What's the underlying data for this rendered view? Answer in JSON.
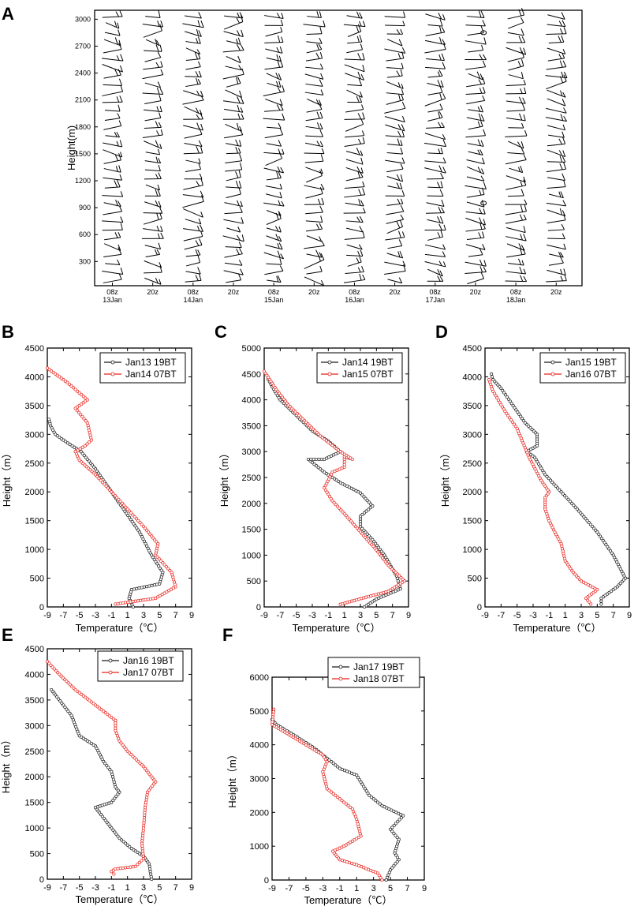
{
  "chart_data": [
    {
      "panel_label": "A",
      "type": "wind-barbs",
      "ylabel": "Height(m)",
      "y_ticks": [
        300,
        600,
        900,
        1200,
        1500,
        1800,
        2100,
        2400,
        2700,
        3000
      ],
      "ylim": [
        30,
        3100
      ],
      "x_ticks": [
        {
          "time": "08z",
          "date": "13Jan"
        },
        {
          "time": "20z",
          "date": ""
        },
        {
          "time": "08z",
          "date": "14Jan"
        },
        {
          "time": "20z",
          "date": ""
        },
        {
          "time": "08z",
          "date": "15Jan"
        },
        {
          "time": "20z",
          "date": ""
        },
        {
          "time": "08z",
          "date": "16Jan"
        },
        {
          "time": "20z",
          "date": ""
        },
        {
          "time": "08z",
          "date": "17Jan"
        },
        {
          "time": "20z",
          "date": ""
        },
        {
          "time": "08z",
          "date": "18Jan"
        },
        {
          "time": "20z",
          "date": ""
        }
      ],
      "profile_times": [
        0,
        0.5,
        1,
        1.5,
        2,
        2.5,
        3,
        3.5,
        4,
        4.5,
        5,
        5.5
      ],
      "barb_heights": [
        150,
        450,
        750,
        1050,
        1350,
        1650,
        1950,
        2250,
        2550,
        2850
      ]
    },
    {
      "panel_label": "B",
      "type": "line",
      "xlabel": "Temperature（℃）",
      "ylabel": "Height（m）",
      "xlim": [
        -9,
        9
      ],
      "ylim": [
        0,
        4500
      ],
      "x_ticks": [
        -9,
        -7,
        -5,
        -3,
        -1,
        1,
        3,
        5,
        7,
        9
      ],
      "y_ticks": [
        0,
        500,
        1000,
        1500,
        2000,
        2500,
        3000,
        3500,
        4000,
        4500
      ],
      "series": [
        {
          "name": "Jan13 19BT",
          "color": "#1a1a1a",
          "points": [
            [
              1.7,
              0
            ],
            [
              1.2,
              150
            ],
            [
              1.5,
              300
            ],
            [
              5,
              400
            ],
            [
              5.4,
              600
            ],
            [
              4,
              900
            ],
            [
              2.5,
              1300
            ],
            [
              0.5,
              1700
            ],
            [
              -1.5,
              2100
            ],
            [
              -3,
              2400
            ],
            [
              -4.8,
              2700
            ],
            [
              -7,
              2900
            ],
            [
              -8,
              3000
            ],
            [
              -8.6,
              3150
            ],
            [
              -8.8,
              3260
            ]
          ]
        },
        {
          "name": "Jan14 07BT",
          "color": "#e8201a",
          "points": [
            [
              -0.5,
              50
            ],
            [
              4.5,
              150
            ],
            [
              7,
              350
            ],
            [
              6.5,
              600
            ],
            [
              4.5,
              900
            ],
            [
              4.8,
              1100
            ],
            [
              3,
              1400
            ],
            [
              1,
              1700
            ],
            [
              -1,
              2000
            ],
            [
              -3,
              2300
            ],
            [
              -5,
              2550
            ],
            [
              -5.5,
              2700
            ],
            [
              -4.3,
              2800
            ],
            [
              -3.5,
              2900
            ],
            [
              -4,
              3200
            ],
            [
              -5.5,
              3450
            ],
            [
              -4,
              3600
            ],
            [
              -6.5,
              3900
            ],
            [
              -9,
              4150
            ]
          ]
        }
      ]
    },
    {
      "panel_label": "C",
      "type": "line",
      "xlabel": "Temperature（℃）",
      "ylabel": "Height（m）",
      "xlim": [
        -9,
        9
      ],
      "ylim": [
        0,
        5000
      ],
      "x_ticks": [
        -9,
        -7,
        -5,
        -3,
        -1,
        1,
        3,
        5,
        7,
        9
      ],
      "y_ticks": [
        0,
        500,
        1000,
        1500,
        2000,
        2500,
        3000,
        3500,
        4000,
        4500,
        5000
      ],
      "series": [
        {
          "name": "Jan14 19BT",
          "color": "#1a1a1a",
          "points": [
            [
              3.5,
              0
            ],
            [
              5,
              150
            ],
            [
              6.5,
              250
            ],
            [
              8,
              350
            ],
            [
              7.5,
              600
            ],
            [
              6,
              1000
            ],
            [
              4.5,
              1300
            ],
            [
              3,
              1550
            ],
            [
              3,
              1750
            ],
            [
              4.5,
              1950
            ],
            [
              3,
              2200
            ],
            [
              0.5,
              2400
            ],
            [
              -1.5,
              2600
            ],
            [
              -3.5,
              2850
            ],
            [
              -1.5,
              2850
            ],
            [
              0.5,
              3000
            ],
            [
              -1,
              3200
            ],
            [
              -3,
              3400
            ],
            [
              -5,
              3700
            ],
            [
              -7,
              4000
            ],
            [
              -8,
              4250
            ],
            [
              -8.5,
              4400
            ]
          ]
        },
        {
          "name": "Jan15 07BT",
          "color": "#e8201a",
          "points": [
            [
              0.5,
              50
            ],
            [
              4,
              200
            ],
            [
              6.5,
              300
            ],
            [
              8.5,
              500
            ],
            [
              6.5,
              800
            ],
            [
              5,
              1100
            ],
            [
              3,
              1450
            ],
            [
              1,
              1800
            ],
            [
              -0.5,
              2050
            ],
            [
              -1.5,
              2300
            ],
            [
              -0.5,
              2600
            ],
            [
              1,
              2700
            ],
            [
              1,
              2900
            ],
            [
              2,
              2850
            ],
            [
              0.5,
              3000
            ],
            [
              -2,
              3300
            ],
            [
              -4,
              3600
            ],
            [
              -6,
              3900
            ],
            [
              -7.5,
              4200
            ],
            [
              -9,
              4550
            ]
          ]
        }
      ]
    },
    {
      "panel_label": "D",
      "type": "line",
      "xlabel": "Temperature（℃）",
      "ylabel": "Height（m）",
      "xlim": [
        -9,
        9
      ],
      "ylim": [
        0,
        4500
      ],
      "x_ticks": [
        -9,
        -7,
        -5,
        -3,
        -1,
        1,
        3,
        5,
        7,
        9
      ],
      "y_ticks": [
        0,
        500,
        1000,
        1500,
        2000,
        2500,
        3000,
        3500,
        4000,
        4500
      ],
      "series": [
        {
          "name": "Jan15 19BT",
          "color": "#1a1a1a",
          "points": [
            [
              5.5,
              50
            ],
            [
              5.5,
              150
            ],
            [
              7.5,
              350
            ],
            [
              8.5,
              500
            ],
            [
              7,
              900
            ],
            [
              5,
              1300
            ],
            [
              2.5,
              1700
            ],
            [
              0.5,
              2000
            ],
            [
              -1.5,
              2300
            ],
            [
              -2.8,
              2600
            ],
            [
              -3.8,
              2700
            ],
            [
              -2.5,
              2800
            ],
            [
              -2.5,
              3000
            ],
            [
              -4,
              3200
            ],
            [
              -5.5,
              3500
            ],
            [
              -7,
              3800
            ],
            [
              -8,
              3950
            ],
            [
              -8.2,
              4050
            ]
          ]
        },
        {
          "name": "Jan16 07BT",
          "color": "#e8201a",
          "points": [
            [
              4.2,
              50
            ],
            [
              3.6,
              150
            ],
            [
              5,
              300
            ],
            [
              3,
              450
            ],
            [
              2,
              600
            ],
            [
              1,
              800
            ],
            [
              0.5,
              1100
            ],
            [
              -0.3,
              1300
            ],
            [
              -1,
              1500
            ],
            [
              -1.5,
              1700
            ],
            [
              -1.5,
              1900
            ],
            [
              -1,
              2000
            ],
            [
              -2,
              2200
            ],
            [
              -3.5,
              2600
            ],
            [
              -5,
              3100
            ],
            [
              -6.5,
              3400
            ],
            [
              -8,
              3750
            ],
            [
              -8.5,
              3950
            ]
          ]
        }
      ]
    },
    {
      "panel_label": "E",
      "type": "line",
      "xlabel": "Temperature（℃）",
      "ylabel": "Height（m）",
      "xlim": [
        -9,
        9
      ],
      "ylim": [
        0,
        4500
      ],
      "x_ticks": [
        -9,
        -7,
        -5,
        -3,
        -1,
        1,
        3,
        5,
        7,
        9
      ],
      "y_ticks": [
        0,
        500,
        1000,
        1500,
        2000,
        2500,
        3000,
        3500,
        4000,
        4500
      ],
      "series": [
        {
          "name": "Jan16 19BT",
          "color": "#1a1a1a",
          "points": [
            [
              4,
              0
            ],
            [
              3.7,
              300
            ],
            [
              3,
              450
            ],
            [
              1.5,
              600
            ],
            [
              0,
              800
            ],
            [
              -1,
              1000
            ],
            [
              -2.5,
              1300
            ],
            [
              -3,
              1400
            ],
            [
              -1,
              1500
            ],
            [
              0,
              1700
            ],
            [
              -0.5,
              1800
            ],
            [
              -1,
              2100
            ],
            [
              -2,
              2300
            ],
            [
              -3,
              2600
            ],
            [
              -5,
              2800
            ],
            [
              -6,
              3200
            ],
            [
              -7,
              3400
            ],
            [
              -8,
              3600
            ],
            [
              -8.5,
              3700
            ]
          ]
        },
        {
          "name": "Jan17 07BT",
          "color": "#e8201a",
          "points": [
            [
              -0.7,
              100
            ],
            [
              -1,
              150
            ],
            [
              -0.5,
              200
            ],
            [
              2,
              250
            ],
            [
              3,
              400
            ],
            [
              2.8,
              700
            ],
            [
              3,
              1000
            ],
            [
              3.2,
              1400
            ],
            [
              3.5,
              1700
            ],
            [
              4.5,
              1900
            ],
            [
              3,
              2200
            ],
            [
              1,
              2500
            ],
            [
              0,
              2700
            ],
            [
              -0.5,
              2900
            ],
            [
              -0.5,
              3100
            ],
            [
              -3,
              3400
            ],
            [
              -5.5,
              3700
            ],
            [
              -7.5,
              4000
            ],
            [
              -9,
              4250
            ]
          ]
        }
      ]
    },
    {
      "panel_label": "F",
      "type": "line",
      "xlabel": "Temperature（℃）",
      "ylabel": "Height（m）",
      "xlim": [
        -9,
        9
      ],
      "ylim": [
        0,
        6000
      ],
      "x_ticks": [
        -9,
        -7,
        -5,
        -3,
        -1,
        1,
        3,
        5,
        7,
        9
      ],
      "y_ticks": [
        0,
        1000,
        2000,
        3000,
        4000,
        5000,
        6000
      ],
      "series": [
        {
          "name": "Jan17 19BT",
          "color": "#1a1a1a",
          "points": [
            [
              4.5,
              0
            ],
            [
              5,
              300
            ],
            [
              6,
              600
            ],
            [
              5.5,
              800
            ],
            [
              6,
              1200
            ],
            [
              5,
              1500
            ],
            [
              6.5,
              1900
            ],
            [
              4,
              2200
            ],
            [
              2.5,
              2500
            ],
            [
              1.5,
              2900
            ],
            [
              1,
              3100
            ],
            [
              -1,
              3300
            ],
            [
              -2.5,
              3600
            ],
            [
              -4,
              3900
            ],
            [
              -6.5,
              4300
            ],
            [
              -8.5,
              4600
            ],
            [
              -9,
              4750
            ]
          ]
        },
        {
          "name": "Jan18 07BT",
          "color": "#e8201a",
          "points": [
            [
              4,
              0
            ],
            [
              3.5,
              200
            ],
            [
              1,
              450
            ],
            [
              -1,
              600
            ],
            [
              -1.5,
              750
            ],
            [
              -1.8,
              850
            ],
            [
              -0.5,
              1000
            ],
            [
              1.5,
              1300
            ],
            [
              1,
              1800
            ],
            [
              0.5,
              2100
            ],
            [
              -1,
              2400
            ],
            [
              -2.5,
              2700
            ],
            [
              -3,
              3200
            ],
            [
              -2.5,
              3500
            ],
            [
              -3,
              3700
            ],
            [
              -5,
              4000
            ],
            [
              -7,
              4300
            ],
            [
              -9,
              4600
            ],
            [
              -8.8,
              5050
            ]
          ]
        }
      ]
    }
  ]
}
